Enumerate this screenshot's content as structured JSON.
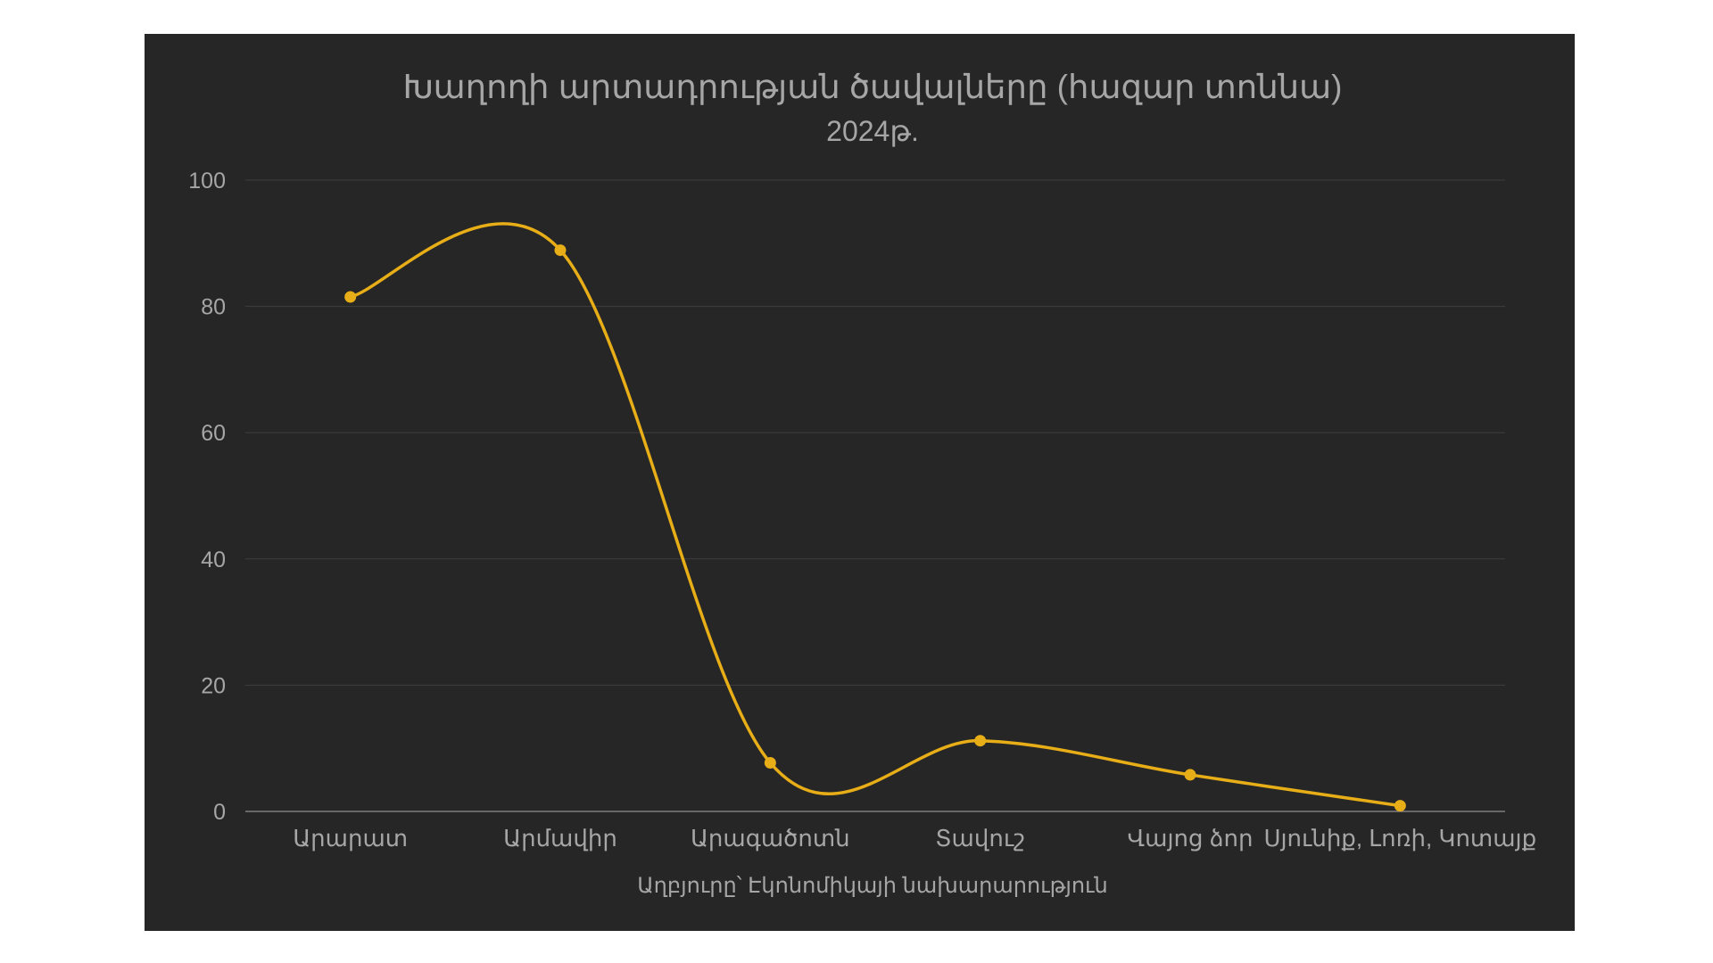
{
  "chart_data": {
    "type": "line",
    "title": "Խաղողի արտադրության ծավալները (հազար տոննա)",
    "subtitle": "2024թ.",
    "xlabel": "Աղբյուրը՝ Էկոնոմիկայի նախարարություն",
    "ylabel": "",
    "categories": [
      "Արարատ",
      "Արմավիր",
      "Արագածոտն",
      "Տավուշ",
      "Վայոց ձոր",
      "Սյունիք, Լոռի, Կոտայք"
    ],
    "values": [
      81.5,
      88.9,
      7.7,
      11.2,
      5.8,
      0.9
    ],
    "ylim": [
      0,
      100
    ],
    "yticks": [
      0,
      20,
      40,
      60,
      80,
      100
    ],
    "smooth": true,
    "grid": true,
    "legend": "none"
  },
  "colors": {
    "background": "#262626",
    "series": "#e8ae18",
    "gridline": "#3f3f3f",
    "axis": "#7f7f7f",
    "text": "#a6a6a6"
  }
}
